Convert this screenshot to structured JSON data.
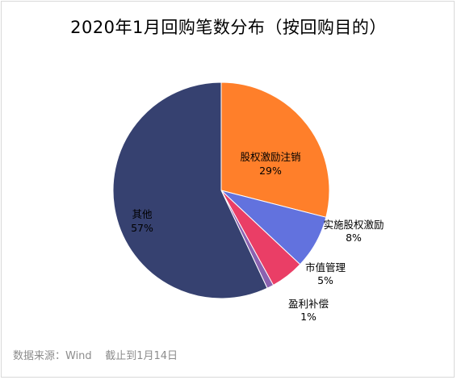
{
  "chart_data": {
    "type": "pie",
    "title": "2020年1月回购笔数分布（按回购目的）",
    "slices": [
      {
        "label": "股权激励注销",
        "value": 29,
        "value_label": "29%",
        "color": "#ff7f2a"
      },
      {
        "label": "实施股权激励",
        "value": 8,
        "value_label": "8%",
        "color": "#6272de"
      },
      {
        "label": "市值管理",
        "value": 5,
        "value_label": "5%",
        "color": "#ea3e66"
      },
      {
        "label": "盈利补偿",
        "value": 1,
        "value_label": "1%",
        "color": "#8a62b0"
      },
      {
        "label": "其他",
        "value": 57,
        "value_label": "57%",
        "color": "#364170"
      }
    ],
    "start_angle_deg": 0,
    "direction": "clockwise",
    "legend": "none",
    "grid": false
  },
  "footer": {
    "source": "数据来源：Wind    截止到1月14日"
  }
}
